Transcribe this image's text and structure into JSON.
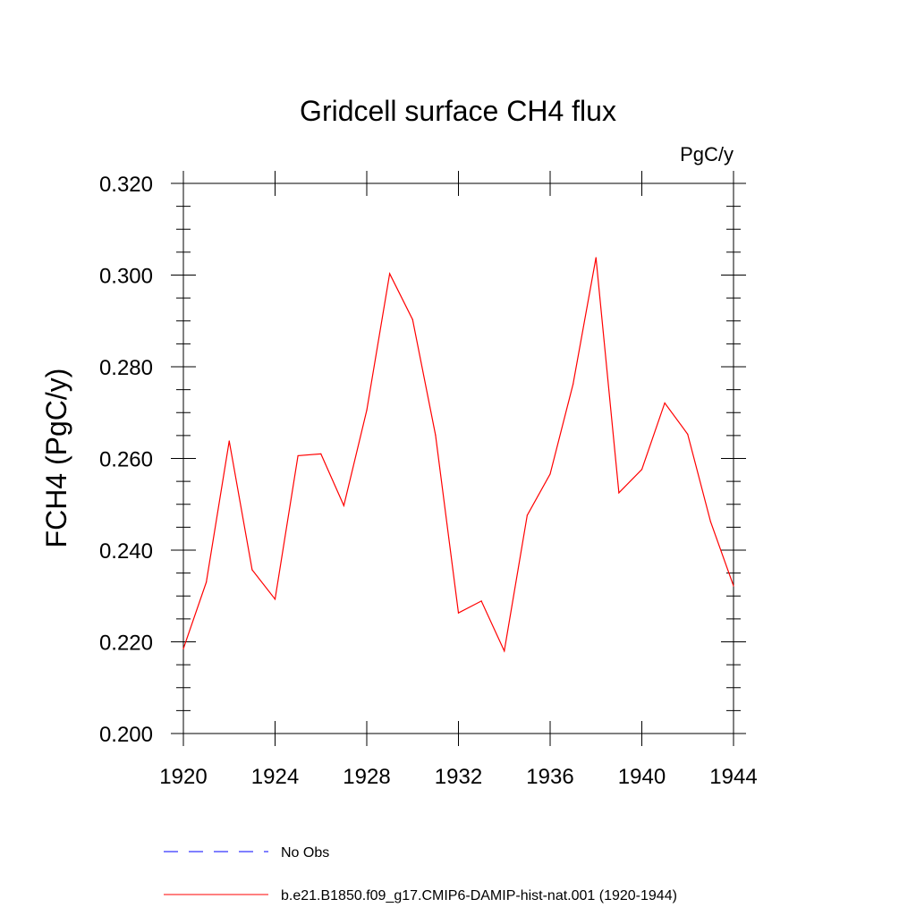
{
  "chart_data": {
    "type": "line",
    "title": "Gridcell surface CH4 flux",
    "units": "PgC/y",
    "ylabel": "FCH4  (PgC/y)",
    "xlabel": "",
    "xlim": [
      1920,
      1944
    ],
    "ylim": [
      0.2,
      0.32
    ],
    "x_ticks": [
      1920,
      1924,
      1928,
      1932,
      1936,
      1940,
      1944
    ],
    "x_tick_labels": [
      "1920",
      "1924",
      "1928",
      "1932",
      "1936",
      "1940",
      "1944"
    ],
    "y_ticks": [
      0.2,
      0.22,
      0.24,
      0.26,
      0.28,
      0.3,
      0.32
    ],
    "y_tick_labels": [
      "0.200",
      "0.220",
      "0.240",
      "0.260",
      "0.280",
      "0.300",
      "0.320"
    ],
    "grid": false,
    "legend_position": "bottom",
    "x": [
      1920,
      1921,
      1922,
      1923,
      1924,
      1925,
      1926,
      1927,
      1928,
      1929,
      1930,
      1931,
      1932,
      1933,
      1934,
      1935,
      1936,
      1937,
      1938,
      1939,
      1940,
      1941,
      1942,
      1943,
      1944
    ],
    "series": [
      {
        "name": "b.e21.B1850.f09_g17.CMIP6-DAMIP-hist-nat.001 (1920-1944)",
        "color": "#ff0000",
        "dash": "solid",
        "values": [
          0.2185,
          0.233,
          0.2638,
          0.2357,
          0.2293,
          0.2606,
          0.261,
          0.2497,
          0.2705,
          0.3003,
          0.2903,
          0.2651,
          0.2263,
          0.2289,
          0.218,
          0.2476,
          0.2566,
          0.2762,
          0.3038,
          0.2525,
          0.2576,
          0.2721,
          0.2653,
          0.2462,
          0.2322
        ]
      }
    ],
    "legend": [
      {
        "label": "No Obs",
        "color": "#0000ff",
        "dash": "dashed"
      },
      {
        "label": "b.e21.B1850.f09_g17.CMIP6-DAMIP-hist-nat.001 (1920-1944)",
        "color": "#ff0000",
        "dash": "solid"
      }
    ]
  }
}
